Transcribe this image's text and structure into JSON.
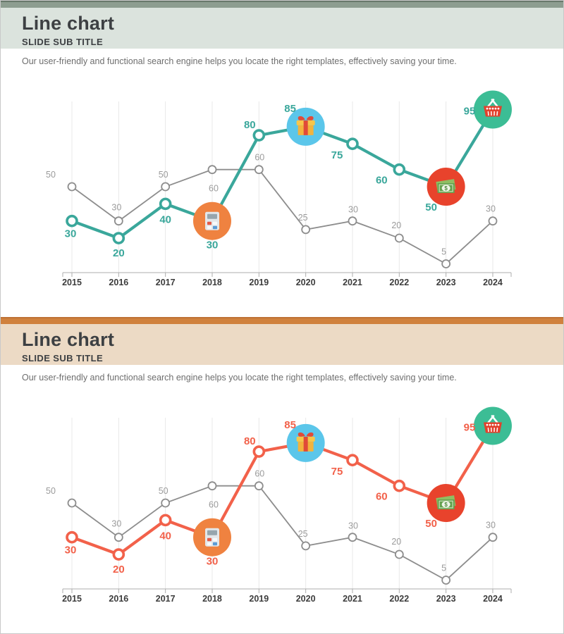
{
  "slides": [
    {
      "title": "Line chart",
      "subtitle": "SLIDE SUB TITLE",
      "description": "Our user-friendly and functional search engine helps you locate the right templates, effectively saving your time.",
      "theme": {
        "accent": "#3AA79B",
        "strip": "#8D9D90",
        "strip_top": "#68786B",
        "header_bg": "#DBE3DD"
      }
    },
    {
      "title": "Line chart",
      "subtitle": "SLIDE SUB TITLE",
      "description": "Our user-friendly and functional search engine helps you locate the right templates, effectively saving your time.",
      "theme": {
        "accent": "#F2614A",
        "strip": "#D0813D",
        "strip_top": "#BE7134",
        "header_bg": "#ECDAC5"
      }
    }
  ],
  "chart_data": [
    {
      "type": "line",
      "title": "Line chart",
      "x": [
        2015,
        2016,
        2017,
        2018,
        2019,
        2020,
        2021,
        2022,
        2023,
        2024
      ],
      "series": [
        {
          "name": "highlighted",
          "color": "#3AA79B",
          "values": [
            30,
            20,
            40,
            30,
            80,
            85,
            75,
            60,
            50,
            95
          ]
        },
        {
          "name": "reference",
          "color": "#8D8D8D",
          "values": [
            50,
            30,
            50,
            60,
            60,
            25,
            30,
            20,
            5,
            30
          ]
        }
      ],
      "ylim": [
        0,
        100
      ],
      "grid": "vertical",
      "legend": "none",
      "point_icons": [
        {
          "x": 2018,
          "icon": "calculator-icon",
          "circle_color": "#EF8240"
        },
        {
          "x": 2020,
          "icon": "gift-icon",
          "circle_color": "#5BC6EA"
        },
        {
          "x": 2023,
          "icon": "money-icon",
          "circle_color": "#E8432C"
        },
        {
          "x": 2024,
          "icon": "basket-icon",
          "circle_color": "#3CBD95"
        }
      ]
    },
    {
      "type": "line",
      "title": "Line chart",
      "x": [
        2015,
        2016,
        2017,
        2018,
        2019,
        2020,
        2021,
        2022,
        2023,
        2024
      ],
      "series": [
        {
          "name": "highlighted",
          "color": "#F2614A",
          "values": [
            30,
            20,
            40,
            30,
            80,
            85,
            75,
            60,
            50,
            95
          ]
        },
        {
          "name": "reference",
          "color": "#8D8D8D",
          "values": [
            50,
            30,
            50,
            60,
            60,
            25,
            30,
            20,
            5,
            30
          ]
        }
      ],
      "ylim": [
        0,
        100
      ],
      "grid": "vertical",
      "legend": "none",
      "point_icons": [
        {
          "x": 2018,
          "icon": "calculator-icon",
          "circle_color": "#EF8240"
        },
        {
          "x": 2020,
          "icon": "gift-icon",
          "circle_color": "#5BC6EA"
        },
        {
          "x": 2023,
          "icon": "money-icon",
          "circle_color": "#E8432C"
        },
        {
          "x": 2024,
          "icon": "basket-icon",
          "circle_color": "#3CBD95"
        }
      ]
    }
  ]
}
